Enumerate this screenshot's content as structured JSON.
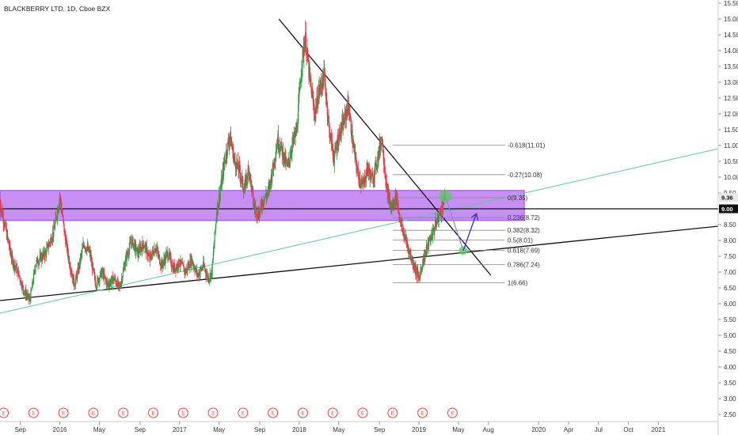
{
  "header": {
    "title": "BLACKBERRY LTD, 1D, Cboe BZX"
  },
  "chart_data": {
    "type": "candlestick",
    "y_axis": {
      "range": [
        2.3,
        15.5
      ],
      "ticks": [
        "2.50",
        "3.00",
        "3.50",
        "4.00",
        "4.50",
        "5.00",
        "5.50",
        "6.00",
        "6.50",
        "7.00",
        "7.50",
        "8.00",
        "8.50",
        "9.00",
        "9.50",
        "10.00",
        "10.50",
        "11.00",
        "11.50",
        "12.00",
        "12.50",
        "13.00",
        "13.50",
        "14.00",
        "14.50",
        "15.00",
        "15.50"
      ],
      "price_tags": [
        {
          "label": "9.36",
          "value": 9.36,
          "bg": "#e8e8e8",
          "color": "#111111"
        },
        {
          "label": "9.00",
          "value": 9.0,
          "bg": "#111111",
          "color": "#ffffff"
        }
      ]
    },
    "x_axis": {
      "range_years": [
        2015.5,
        2021.5
      ],
      "labels": [
        {
          "text": "Sep",
          "t": 2015.67
        },
        {
          "text": "2016",
          "t": 2016.0
        },
        {
          "text": "May",
          "t": 2016.33
        },
        {
          "text": "Sep",
          "t": 2016.67
        },
        {
          "text": "2017",
          "t": 2017.0
        },
        {
          "text": "May",
          "t": 2017.33
        },
        {
          "text": "Sep",
          "t": 2017.67
        },
        {
          "text": "2018",
          "t": 2018.0
        },
        {
          "text": "May",
          "t": 2018.33
        },
        {
          "text": "Sep",
          "t": 2018.67
        },
        {
          "text": "2019",
          "t": 2019.0
        },
        {
          "text": "May",
          "t": 2019.33
        },
        {
          "text": "Aug",
          "t": 2019.58
        },
        {
          "text": "2020",
          "t": 2020.0
        },
        {
          "text": "Apr",
          "t": 2020.25
        },
        {
          "text": "Jul",
          "t": 2020.5
        },
        {
          "text": "Oct",
          "t": 2020.75
        },
        {
          "text": "2021",
          "t": 2021.0
        }
      ]
    },
    "price_path": [
      [
        2015.5,
        9.2
      ],
      [
        2015.55,
        8.3
      ],
      [
        2015.6,
        7.4
      ],
      [
        2015.65,
        7.0
      ],
      [
        2015.7,
        6.4
      ],
      [
        2015.75,
        6.1
      ],
      [
        2015.8,
        7.3
      ],
      [
        2015.88,
        7.6
      ],
      [
        2015.95,
        8.3
      ],
      [
        2016.0,
        9.4
      ],
      [
        2016.04,
        8.2
      ],
      [
        2016.08,
        7.3
      ],
      [
        2016.12,
        6.6
      ],
      [
        2016.15,
        7.0
      ],
      [
        2016.2,
        7.9
      ],
      [
        2016.25,
        7.6
      ],
      [
        2016.3,
        6.6
      ],
      [
        2016.35,
        7.0
      ],
      [
        2016.4,
        6.6
      ],
      [
        2016.45,
        6.8
      ],
      [
        2016.5,
        6.5
      ],
      [
        2016.55,
        7.4
      ],
      [
        2016.6,
        8.0
      ],
      [
        2016.65,
        7.6
      ],
      [
        2016.7,
        7.9
      ],
      [
        2016.75,
        7.4
      ],
      [
        2016.8,
        7.8
      ],
      [
        2016.85,
        7.2
      ],
      [
        2016.9,
        7.6
      ],
      [
        2016.95,
        7.1
      ],
      [
        2017.0,
        7.3
      ],
      [
        2017.05,
        7.0
      ],
      [
        2017.1,
        7.4
      ],
      [
        2017.15,
        6.9
      ],
      [
        2017.2,
        7.2
      ],
      [
        2017.24,
        6.8
      ],
      [
        2017.27,
        7.0
      ],
      [
        2017.31,
        8.9
      ],
      [
        2017.35,
        9.8
      ],
      [
        2017.38,
        10.6
      ],
      [
        2017.42,
        11.3
      ],
      [
        2017.46,
        10.5
      ],
      [
        2017.5,
        10.2
      ],
      [
        2017.54,
        9.6
      ],
      [
        2017.58,
        10.3
      ],
      [
        2017.62,
        9.1
      ],
      [
        2017.66,
        8.8
      ],
      [
        2017.7,
        9.3
      ],
      [
        2017.74,
        9.5
      ],
      [
        2017.78,
        10.3
      ],
      [
        2017.82,
        11.2
      ],
      [
        2017.86,
        10.8
      ],
      [
        2017.9,
        10.3
      ],
      [
        2017.94,
        11.0
      ],
      [
        2017.98,
        11.5
      ],
      [
        2018.02,
        13.6
      ],
      [
        2018.05,
        14.4
      ],
      [
        2018.09,
        13.0
      ],
      [
        2018.13,
        12.0
      ],
      [
        2018.17,
        12.8
      ],
      [
        2018.21,
        13.2
      ],
      [
        2018.25,
        11.5
      ],
      [
        2018.29,
        10.6
      ],
      [
        2018.33,
        11.3
      ],
      [
        2018.37,
        11.7
      ],
      [
        2018.41,
        12.3
      ],
      [
        2018.45,
        11.0
      ],
      [
        2018.49,
        10.1
      ],
      [
        2018.53,
        9.7
      ],
      [
        2018.57,
        10.3
      ],
      [
        2018.61,
        9.9
      ],
      [
        2018.65,
        10.5
      ],
      [
        2018.69,
        11.3
      ],
      [
        2018.73,
        9.6
      ],
      [
        2018.77,
        9.0
      ],
      [
        2018.81,
        9.4
      ],
      [
        2018.85,
        8.5
      ],
      [
        2018.89,
        8.0
      ],
      [
        2018.93,
        7.5
      ],
      [
        2018.97,
        7.1
      ],
      [
        2019.0,
        6.8
      ],
      [
        2019.03,
        7.3
      ],
      [
        2019.07,
        7.8
      ],
      [
        2019.11,
        8.2
      ],
      [
        2019.15,
        8.6
      ],
      [
        2019.19,
        9.0
      ],
      [
        2019.22,
        9.4
      ]
    ],
    "fibonacci": {
      "levels": [
        {
          "ratio": "-0.618",
          "price": 11.01,
          "label": "-0.618(11.01)"
        },
        {
          "ratio": "-0.27",
          "price": 10.08,
          "label": "-0.27(10.08)"
        },
        {
          "ratio": "0",
          "price": 9.35,
          "label": "0(9.35)"
        },
        {
          "ratio": "0.236",
          "price": 8.72,
          "label": "0.236(8.72)"
        },
        {
          "ratio": "0.382",
          "price": 8.32,
          "label": "0.382(8.32)"
        },
        {
          "ratio": "0.5",
          "price": 8.01,
          "label": "0.5(8.01)"
        },
        {
          "ratio": "0.618",
          "price": 7.69,
          "label": "0.618(7.69)"
        },
        {
          "ratio": "0.786",
          "price": 7.24,
          "label": "0.786(7.24)"
        },
        {
          "ratio": "1",
          "price": 6.66,
          "label": "1(6.66)"
        }
      ],
      "t_start": 2018.78,
      "t_end": 2019.72
    },
    "zone": {
      "top": 9.58,
      "bottom": 8.63,
      "t_start": 2015.5,
      "t_end": 2019.88,
      "color": "#b468f0"
    },
    "trendlines": [
      {
        "name": "descending-resistance",
        "from": [
          2017.83,
          15.0
        ],
        "to": [
          2019.6,
          6.9
        ],
        "color": "#111111"
      },
      {
        "name": "ascending-support",
        "from": [
          2015.5,
          6.1
        ],
        "to": [
          2021.5,
          8.45
        ],
        "color": "#111111"
      },
      {
        "name": "ascending-channel",
        "from": [
          2015.5,
          5.7
        ],
        "to": [
          2021.5,
          10.9
        ],
        "color": "#5cc7a0"
      },
      {
        "name": "horizontal-level",
        "from": [
          2015.5,
          9.0
        ],
        "to": [
          2021.5,
          9.0
        ],
        "color": "#111111"
      }
    ],
    "projection": {
      "path": [
        [
          2019.22,
          9.4
        ],
        [
          2019.37,
          7.68
        ],
        [
          2019.48,
          8.85
        ]
      ],
      "circles": [
        {
          "t": 2019.22,
          "price": 9.4,
          "color": "#5cc85c"
        },
        {
          "t": 2019.37,
          "price": 7.68,
          "color": "#5cc85c"
        }
      ],
      "down_color": "#8c84e8",
      "up_color": "#4a30c8"
    },
    "earnings_markers": {
      "label": "E",
      "t": [
        2015.53,
        2015.78,
        2016.03,
        2016.28,
        2016.53,
        2016.78,
        2017.03,
        2017.28,
        2017.53,
        2017.78,
        2018.03,
        2018.28,
        2018.53,
        2018.78,
        2019.03,
        2019.28
      ]
    }
  }
}
